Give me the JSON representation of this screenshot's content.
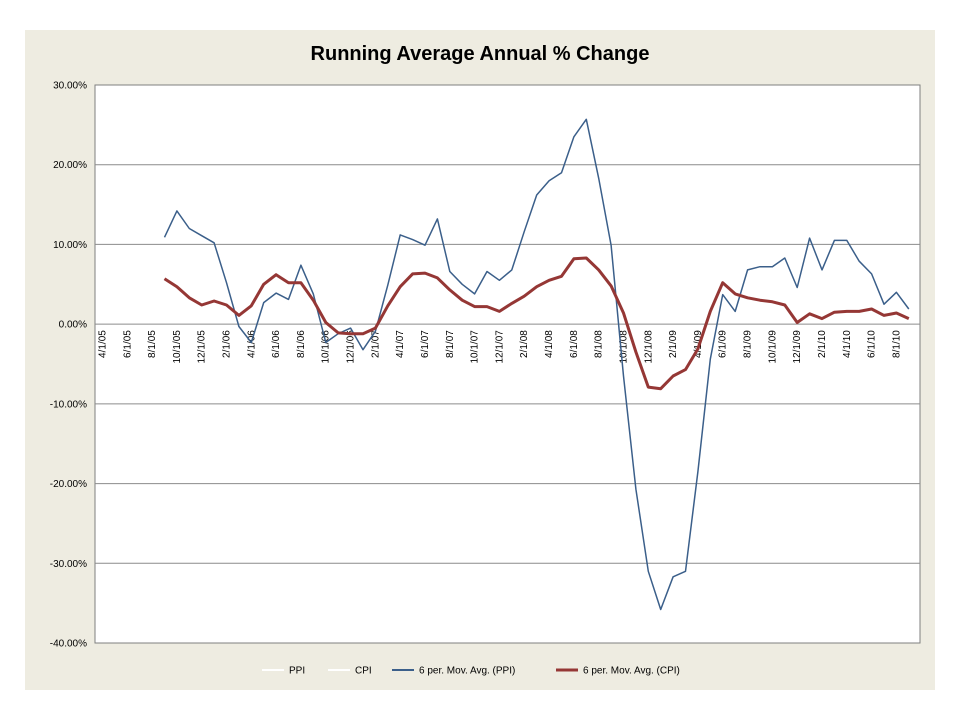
{
  "chart_data": {
    "type": "line",
    "title": "Running Average Annual % Change",
    "xlabel": "",
    "ylabel": "",
    "ylim": [
      -40,
      30
    ],
    "y_ticks": [
      "30.00%",
      "20.00%",
      "10.00%",
      "0.00%",
      "-10.00%",
      "-20.00%",
      "-30.00%",
      "-40.00%"
    ],
    "y_tick_values": [
      30,
      20,
      10,
      0,
      -10,
      -20,
      -30,
      -40
    ],
    "x_categories": [
      "4/1/05",
      "5/1/05",
      "6/1/05",
      "7/1/05",
      "8/1/05",
      "9/1/05",
      "10/1/05",
      "11/1/05",
      "12/1/05",
      "1/1/06",
      "2/1/06",
      "3/1/06",
      "4/1/06",
      "5/1/06",
      "6/1/06",
      "7/1/06",
      "8/1/06",
      "9/1/06",
      "10/1/06",
      "11/1/06",
      "12/1/06",
      "1/1/07",
      "2/1/07",
      "3/1/07",
      "4/1/07",
      "5/1/07",
      "6/1/07",
      "7/1/07",
      "8/1/07",
      "9/1/07",
      "10/1/07",
      "11/1/07",
      "12/1/07",
      "1/1/08",
      "2/1/08",
      "3/1/08",
      "4/1/08",
      "5/1/08",
      "6/1/08",
      "7/1/08",
      "8/1/08",
      "9/1/08",
      "10/1/08",
      "11/1/08",
      "12/1/08",
      "1/1/09",
      "2/1/09",
      "3/1/09",
      "4/1/09",
      "5/1/09",
      "6/1/09",
      "7/1/09",
      "8/1/09",
      "9/1/09",
      "10/1/09",
      "11/1/09",
      "12/1/09",
      "1/1/10",
      "2/1/10",
      "3/1/10",
      "4/1/10",
      "5/1/10",
      "6/1/10",
      "7/1/10",
      "8/1/10",
      "9/1/10"
    ],
    "x_tick_labels": [
      "4/1/05",
      "6/1/05",
      "8/1/05",
      "10/1/05",
      "12/1/05",
      "2/1/06",
      "4/1/06",
      "6/1/06",
      "8/1/06",
      "10/1/06",
      "12/1/06",
      "2/1/07",
      "4/1/07",
      "6/1/07",
      "8/1/07",
      "10/1/07",
      "12/1/07",
      "2/1/08",
      "4/1/08",
      "6/1/08",
      "8/1/08",
      "10/1/08",
      "12/1/08",
      "2/1/09",
      "4/1/09",
      "6/1/09",
      "8/1/09",
      "10/1/09",
      "12/1/09",
      "2/1/10",
      "4/1/10",
      "6/1/10",
      "8/1/10"
    ],
    "grid": true,
    "legend_position": "bottom",
    "series": [
      {
        "name": "PPI",
        "color": "#ffffff",
        "values": []
      },
      {
        "name": "CPI",
        "color": "#ffffff",
        "values": []
      },
      {
        "name": "6 per. Mov. Avg. (PPI)",
        "color": "#3b5f8a",
        "values": [
          null,
          null,
          null,
          null,
          null,
          10.9,
          14.2,
          12.0,
          11.1,
          10.2,
          5.2,
          -0.3,
          -2.3,
          2.7,
          3.9,
          3.1,
          7.4,
          3.8,
          -2.3,
          -1.2,
          -0.5,
          -3.2,
          -0.9,
          4.9,
          11.2,
          10.6,
          9.9,
          13.2,
          6.6,
          5.0,
          3.8,
          6.6,
          5.5,
          6.8,
          11.6,
          16.2,
          18.0,
          19.0,
          23.5,
          25.7,
          18.3,
          9.9,
          -6.5,
          -20.7,
          -31.0,
          -35.8,
          -31.7,
          -31.0,
          -18.5,
          -4.4,
          3.7,
          1.6,
          6.8,
          7.2,
          7.2,
          8.3,
          4.6,
          10.8,
          6.8,
          10.5,
          10.5,
          7.9,
          6.3,
          2.5,
          4.0,
          1.9
        ]
      },
      {
        "name": "6 per. Mov. Avg. (CPI)",
        "color": "#953735",
        "values": [
          null,
          null,
          null,
          null,
          null,
          5.7,
          4.7,
          3.3,
          2.4,
          2.9,
          2.4,
          1.1,
          2.3,
          5.0,
          6.2,
          5.2,
          5.2,
          3.0,
          0.2,
          -1.1,
          -1.2,
          -1.2,
          -0.5,
          2.3,
          4.7,
          6.3,
          6.4,
          5.8,
          4.3,
          3.0,
          2.2,
          2.2,
          1.6,
          2.6,
          3.5,
          4.7,
          5.5,
          6.0,
          8.2,
          8.3,
          6.8,
          4.8,
          1.4,
          -3.5,
          -7.9,
          -8.1,
          -6.5,
          -5.7,
          -3.1,
          1.6,
          5.2,
          3.8,
          3.3,
          3.0,
          2.8,
          2.4,
          0.2,
          1.3,
          0.7,
          1.5,
          1.6,
          1.6,
          1.9,
          1.1,
          1.4,
          0.7
        ]
      }
    ]
  }
}
